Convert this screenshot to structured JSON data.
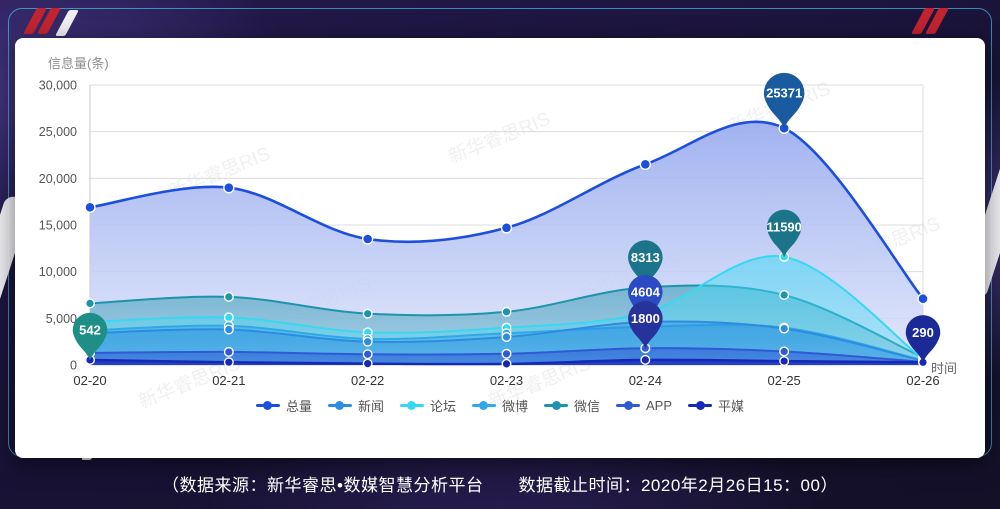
{
  "caption": "（数据来源：新华睿思•数媒智慧分析平台　　数据截止时间：2020年2月26日15：00）",
  "watermark": "新华睿思RIS",
  "chart_data": {
    "type": "area",
    "title": "",
    "xlabel": "时间",
    "ylabel": "信息量(条)",
    "x": [
      "02-20",
      "02-21",
      "02-22",
      "02-23",
      "02-24",
      "02-25",
      "02-26"
    ],
    "ylim": [
      0,
      30000
    ],
    "y_ticks": [
      0,
      5000,
      10000,
      15000,
      20000,
      25000,
      30000
    ],
    "grid": true,
    "legend_position": "bottom",
    "layer_order": [
      "总量",
      "微信",
      "论坛",
      "微博",
      "新闻",
      "APP",
      "平媒"
    ],
    "series": [
      {
        "name": "总量",
        "color": "#1D4FDE",
        "area_top": "#9caeef",
        "area_bottom": "#d9e1fa",
        "op_top": 0.95,
        "op_bottom": 0.8,
        "width": 2.6,
        "values": [
          16900,
          19000,
          13500,
          14700,
          21500,
          25371,
          7100
        ]
      },
      {
        "name": "新闻",
        "color": "#2E8CE0",
        "area_top": "#2E8CE0",
        "area_bottom": "#2E8CE0",
        "op_top": 0.45,
        "op_bottom": 0.3,
        "width": 2,
        "values": [
          3400,
          3800,
          2500,
          3000,
          4604,
          3900,
          450
        ]
      },
      {
        "name": "论坛",
        "color": "#36D8F2",
        "area_top": "#45d9f3",
        "area_bottom": "#45d9f3",
        "op_top": 0.55,
        "op_bottom": 0.3,
        "width": 2,
        "values": [
          4600,
          5100,
          3500,
          4000,
          5600,
          11590,
          600
        ]
      },
      {
        "name": "微博",
        "color": "#2FA8E8",
        "area_top": "#2FA8E8",
        "area_bottom": "#2FA8E8",
        "op_top": 0.5,
        "op_bottom": 0.35,
        "width": 2,
        "values": [
          3700,
          4200,
          2800,
          3400,
          4100,
          4000,
          500
        ]
      },
      {
        "name": "微信",
        "color": "#1E93AC",
        "area_top": "#1E93AC",
        "area_bottom": "#1E93AC",
        "op_top": 0.5,
        "op_bottom": 0.25,
        "width": 2,
        "values": [
          6600,
          7300,
          5500,
          5700,
          8313,
          7500,
          800
        ]
      },
      {
        "name": "APP",
        "color": "#3059D6",
        "area_top": "#3059D6",
        "area_bottom": "#3059D6",
        "op_top": 0.6,
        "op_bottom": 0.45,
        "width": 2,
        "values": [
          1300,
          1400,
          1150,
          1200,
          1800,
          1450,
          320
        ]
      },
      {
        "name": "平媒",
        "color": "#1628B8",
        "area_top": "#1628B8",
        "area_bottom": "#1628B8",
        "op_top": 0.85,
        "op_bottom": 0.7,
        "width": 2.4,
        "values": [
          542,
          300,
          150,
          120,
          550,
          420,
          290
        ]
      }
    ],
    "annotations": [
      {
        "series": "平媒",
        "date": "02-20",
        "value": 542,
        "pin_color": "#1F8E87"
      },
      {
        "series": "总量",
        "date": "02-25",
        "value": 25371,
        "pin_color": "#1A5A9E"
      },
      {
        "series": "论坛",
        "date": "02-25",
        "value": 11590,
        "pin_color": "#1B7489"
      },
      {
        "series": "微信",
        "date": "02-24",
        "value": 8313,
        "pin_color": "#1B7489"
      },
      {
        "series": "新闻",
        "date": "02-24",
        "value": 4604,
        "pin_color": "#2A4BC4"
      },
      {
        "series": "APP",
        "date": "02-24",
        "value": 1800,
        "pin_color": "#27339B"
      },
      {
        "series": "平媒",
        "date": "02-26",
        "value": 290,
        "pin_color": "#1B2A96"
      }
    ]
  }
}
